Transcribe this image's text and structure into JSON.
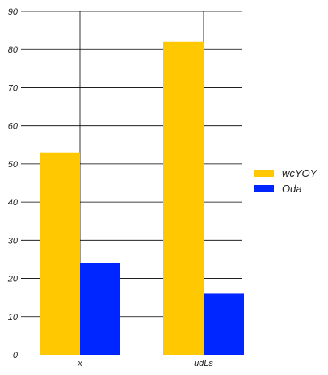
{
  "chart_data": {
    "type": "bar",
    "categories": [
      "x",
      "udLs"
    ],
    "series": [
      {
        "name": "wcYOY",
        "values": [
          53,
          82
        ],
        "color": "#FFC800"
      },
      {
        "name": "Oda",
        "values": [
          24,
          16
        ],
        "color": "#0026FF"
      }
    ],
    "ylim": [
      0,
      90
    ],
    "yticks": [
      0,
      10,
      20,
      30,
      40,
      50,
      60,
      70,
      80,
      90
    ],
    "grid": "horizontal",
    "legend": "right",
    "title": "",
    "xlabel": "",
    "ylabel": ""
  }
}
